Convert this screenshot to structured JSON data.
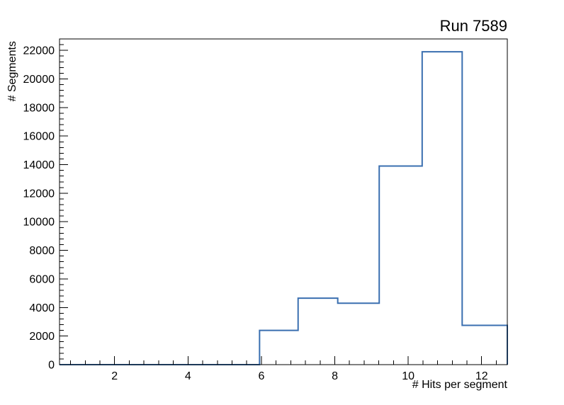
{
  "page": {
    "background_color": "#ffffff"
  },
  "chart_data": {
    "type": "bar",
    "subtype": "step-histogram",
    "title": "Run 7589",
    "xlabel": "# Hits per segment",
    "ylabel": "# Segments",
    "xlim": [
      0.5,
      12.7
    ],
    "ylim": [
      0,
      22800
    ],
    "x_major_ticks": [
      2,
      4,
      6,
      8,
      10,
      12
    ],
    "x_minor_step": 0.4,
    "y_major_ticks": [
      0,
      2000,
      4000,
      6000,
      8000,
      10000,
      12000,
      14000,
      16000,
      18000,
      20000,
      22000
    ],
    "y_minor_step": 400,
    "bin_edges": [
      0.5,
      5.95,
      7.0,
      8.08,
      9.21,
      10.38,
      11.47,
      12.7
    ],
    "counts": [
      0,
      2400,
      4650,
      4300,
      13900,
      21900,
      2750
    ],
    "line_color": "#3a6fb0",
    "axis_color": "#000000",
    "grid": false,
    "legend_position": "none",
    "ticks_inside": true
  }
}
